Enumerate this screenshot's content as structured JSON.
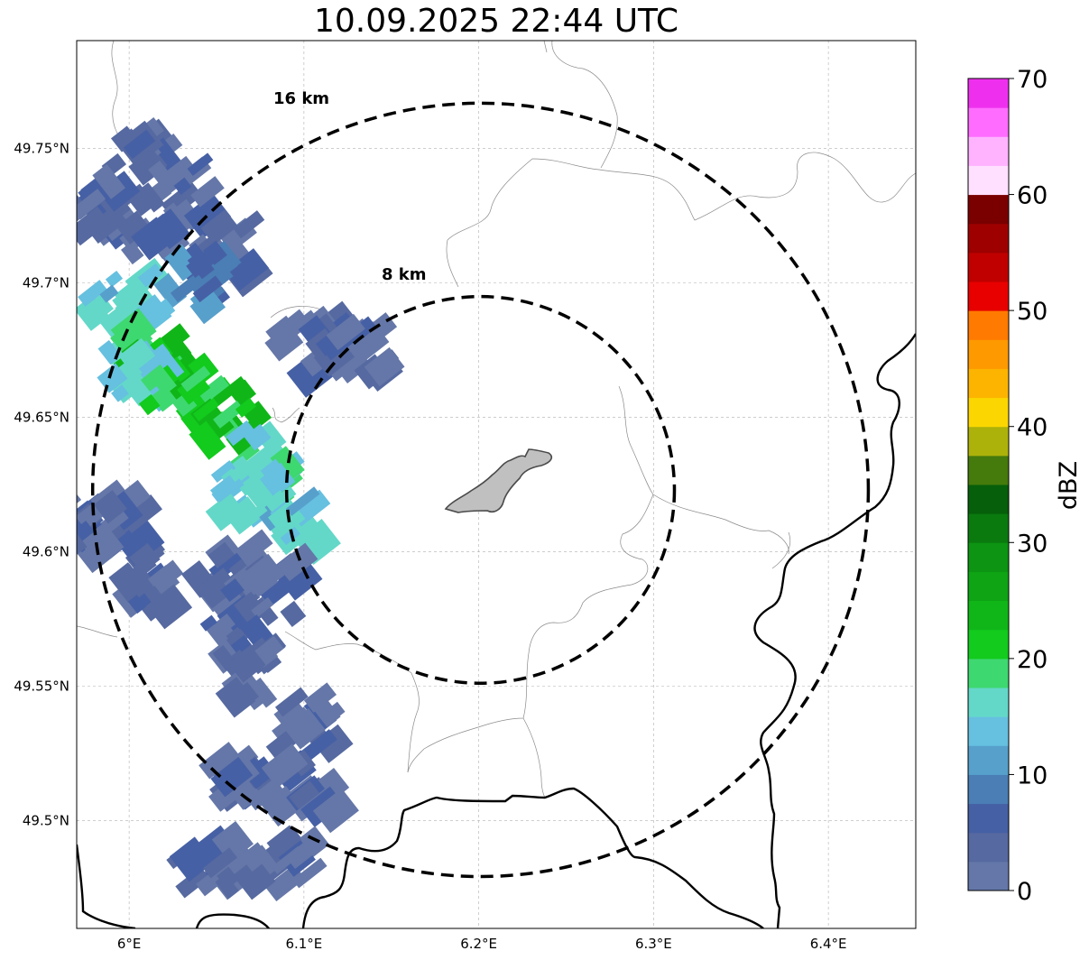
{
  "title": "10.09.2025 22:44 UTC",
  "map": {
    "lon_range": [
      5.97,
      6.45
    ],
    "lat_range": [
      49.46,
      49.79
    ],
    "lon_ticks": [
      6.0,
      6.1,
      6.2,
      6.3,
      6.4
    ],
    "lon_tick_labels": [
      "6°E",
      "6.1°E",
      "6.2°E",
      "6.3°E",
      "6.4°E"
    ],
    "lat_ticks": [
      49.5,
      49.55,
      49.6,
      49.65,
      49.7,
      49.75
    ],
    "lat_tick_labels": [
      "49.5°N",
      "49.55°N",
      "49.6°N",
      "49.65°N",
      "49.7°N",
      "49.75°N"
    ],
    "gridlines": true,
    "radar_center": {
      "lon": 6.201,
      "lat": 49.623
    },
    "range_rings": [
      {
        "radius_km": 8,
        "label": "8 km"
      },
      {
        "radius_km": 16,
        "label": "16 km"
      }
    ],
    "city_area_color": "#c0c0c0"
  },
  "chart_data": {
    "type": "heatmap",
    "variable": "radar reflectivity",
    "units": "dBZ",
    "colorbar": {
      "label": "dBZ",
      "min": 0,
      "max": 70,
      "ticks": [
        0,
        10,
        20,
        30,
        40,
        50,
        60,
        70
      ],
      "colors": [
        "#6577a8",
        "#5669a0",
        "#4660a5",
        "#4a7eb4",
        "#57a0cc",
        "#66c0e0",
        "#63d8c8",
        "#3ed870",
        "#12cb1d",
        "#10b618",
        "#0ea414",
        "#0c9412",
        "#0a7a0e",
        "#065f0a",
        "#457a0c",
        "#adb20a",
        "#fbd600",
        "#fcb400",
        "#fe9900",
        "#ff7a00",
        "#e80000",
        "#c00000",
        "#9e0000",
        "#7a0000",
        "#ffe0ff",
        "#ffb3ff",
        "#ff6cff",
        "#ee30ee"
      ]
    },
    "echo_band": {
      "orientation": "northwest-southeast",
      "max_dbz": 24,
      "peak_locations": [
        {
          "lon": 6.0,
          "lat": 49.665,
          "dbz": 23
        },
        {
          "lon": 6.07,
          "lat": 49.625,
          "dbz": 21
        }
      ]
    }
  }
}
